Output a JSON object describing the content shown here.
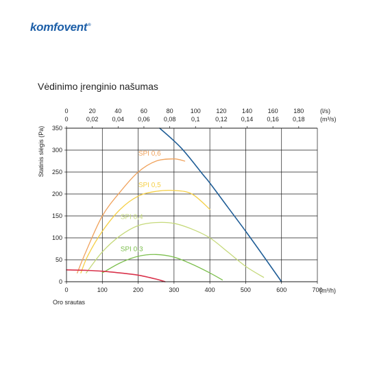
{
  "brand": {
    "name": "komfovent",
    "mark": "®"
  },
  "chart_data": {
    "type": "line",
    "title": "Vėdinimo įrenginio našumas",
    "ylabel": "Statinis slėgis (Pa)",
    "xlabel": "Oro srautas",
    "x_unit": "(m³/h)",
    "xlim": [
      0,
      700
    ],
    "ylim": [
      0,
      350
    ],
    "x_ticks": [
      0,
      100,
      200,
      300,
      400,
      500,
      600,
      700
    ],
    "y_ticks": [
      0,
      50,
      100,
      150,
      200,
      250,
      300,
      350
    ],
    "grid": true,
    "top_axis_ls": {
      "unit": "(l/s)",
      "ticks": [
        {
          "label": "0",
          "value": 0
        },
        {
          "label": "20",
          "value": 20
        },
        {
          "label": "40",
          "value": 40
        },
        {
          "label": "60",
          "value": 60
        },
        {
          "label": "80",
          "value": 80
        },
        {
          "label": "100",
          "value": 100
        },
        {
          "label": "120",
          "value": 120
        },
        {
          "label": "140",
          "value": 140
        },
        {
          "label": "160",
          "value": 160
        },
        {
          "label": "180",
          "value": 180
        }
      ]
    },
    "top_axis_m3s": {
      "unit": "(m³/s)",
      "ticks": [
        {
          "label": "0",
          "value": 0
        },
        {
          "label": "0,02",
          "value": 0.02
        },
        {
          "label": "0,04",
          "value": 0.04
        },
        {
          "label": "0,06",
          "value": 0.06
        },
        {
          "label": "0,08",
          "value": 0.08
        },
        {
          "label": "0,1",
          "value": 0.1
        },
        {
          "label": "0,12",
          "value": 0.12
        },
        {
          "label": "0,14",
          "value": 0.14
        },
        {
          "label": "0,16",
          "value": 0.16
        },
        {
          "label": "0,18",
          "value": 0.18
        }
      ]
    },
    "series": [
      {
        "name": "SPI 0,6",
        "color": "#f0a25c",
        "points": [
          [
            30,
            20
          ],
          [
            55,
            70
          ],
          [
            100,
            150
          ],
          [
            150,
            205
          ],
          [
            200,
            250
          ],
          [
            250,
            275
          ],
          [
            300,
            280
          ],
          [
            330,
            275
          ]
        ]
      },
      {
        "name": "SPI 0,5",
        "color": "#f5cf45",
        "points": [
          [
            40,
            20
          ],
          [
            60,
            60
          ],
          [
            100,
            115
          ],
          [
            150,
            165
          ],
          [
            200,
            195
          ],
          [
            250,
            206
          ],
          [
            300,
            208
          ],
          [
            350,
            200
          ],
          [
            400,
            165
          ]
        ]
      },
      {
        "name": "SPI 0,4",
        "color": "#c5d97a",
        "points": [
          [
            55,
            20
          ],
          [
            100,
            68
          ],
          [
            150,
            105
          ],
          [
            200,
            128
          ],
          [
            250,
            135
          ],
          [
            300,
            133
          ],
          [
            350,
            120
          ],
          [
            400,
            100
          ],
          [
            450,
            68
          ],
          [
            500,
            35
          ],
          [
            550,
            10
          ]
        ]
      },
      {
        "name": "SPI 0,3",
        "color": "#7cbf4d",
        "points": [
          [
            100,
            20
          ],
          [
            150,
            43
          ],
          [
            200,
            58
          ],
          [
            250,
            62
          ],
          [
            300,
            56
          ],
          [
            350,
            40
          ],
          [
            400,
            20
          ],
          [
            435,
            4
          ]
        ]
      },
      {
        "name": "",
        "color": "#1f5d96",
        "points": [
          [
            260,
            350
          ],
          [
            320,
            305
          ],
          [
            380,
            245
          ],
          [
            400,
            225
          ],
          [
            450,
            170
          ],
          [
            500,
            115
          ],
          [
            550,
            58
          ],
          [
            600,
            0
          ]
        ]
      },
      {
        "name": "",
        "color": "#d9314a",
        "points": [
          [
            0,
            27
          ],
          [
            50,
            26
          ],
          [
            100,
            24
          ],
          [
            150,
            20
          ],
          [
            200,
            15
          ],
          [
            250,
            6
          ],
          [
            275,
            0
          ]
        ]
      }
    ]
  }
}
